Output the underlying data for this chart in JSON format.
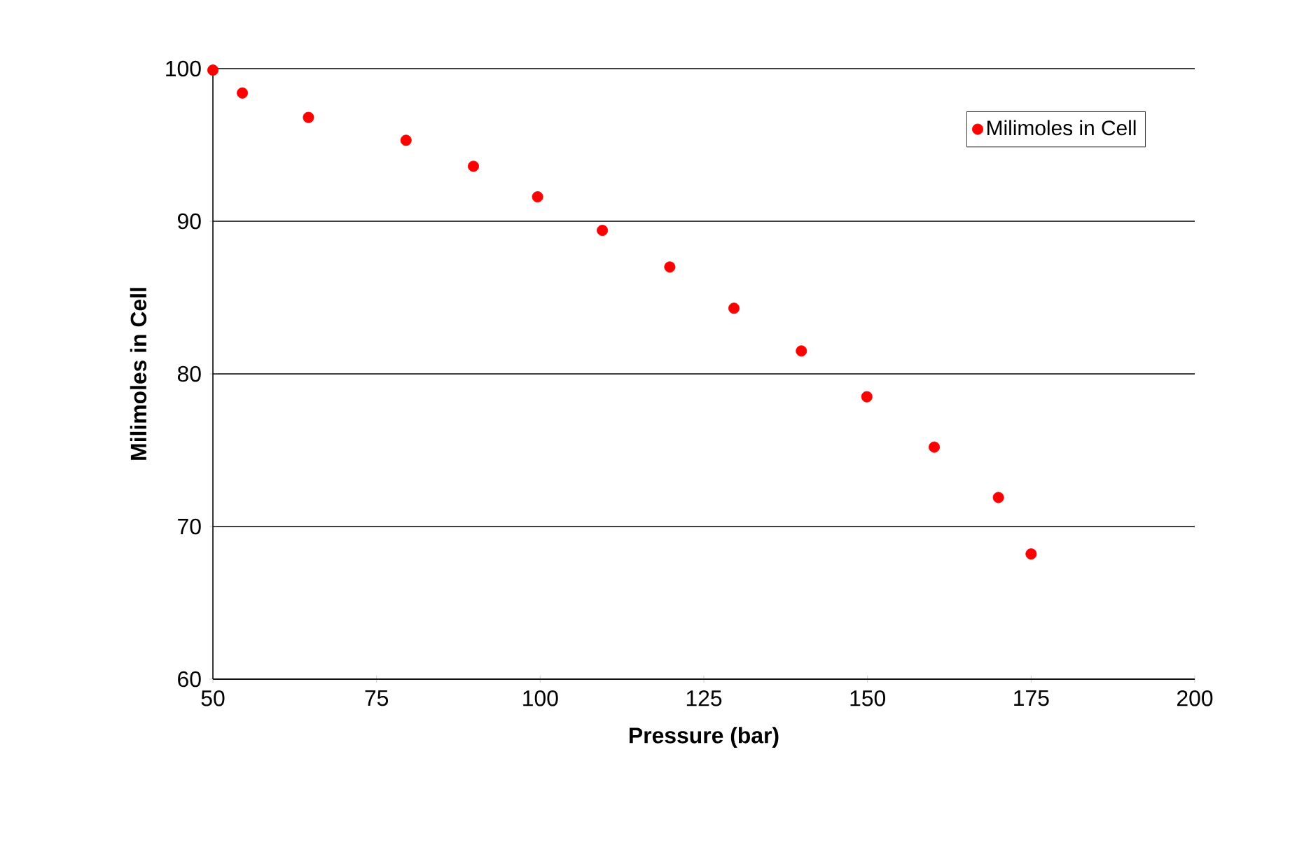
{
  "chart_data": {
    "type": "scatter",
    "xlabel": "Pressure (bar)",
    "ylabel": "Milimoles in Cell",
    "series": [
      {
        "name": "Milimoles in Cell",
        "color": "#ff0000",
        "x": [
          50,
          54.5,
          64.6,
          79.5,
          89.8,
          99.6,
          109.5,
          119.8,
          129.6,
          139.9,
          149.9,
          160.2,
          170.0,
          175.0
        ],
        "values": [
          99.9,
          98.4,
          96.8,
          95.3,
          93.6,
          91.6,
          89.4,
          87.0,
          84.3,
          81.5,
          78.5,
          75.2,
          71.9,
          68.2
        ]
      }
    ],
    "xlim": [
      50,
      200
    ],
    "ylim": [
      60,
      100
    ],
    "xticks": [
      50,
      75,
      100,
      125,
      150,
      175,
      200
    ],
    "yticks": [
      60,
      70,
      80,
      90,
      100
    ],
    "grid": "y",
    "legend": "top right"
  }
}
